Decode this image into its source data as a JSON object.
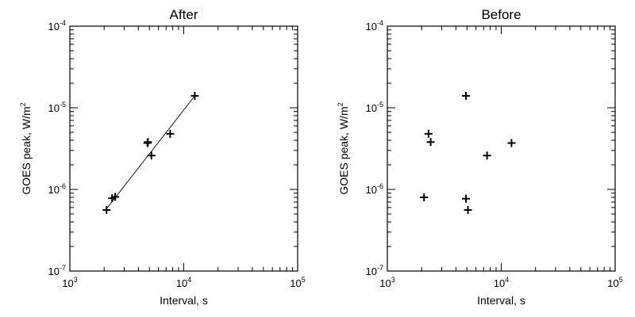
{
  "chart_data": [
    {
      "type": "scatter",
      "title": "After",
      "xlabel": "Interval, s",
      "ylabel": "GOES peak, W/m",
      "ylabel_sup": "2",
      "xscale": "log",
      "yscale": "log",
      "xlim": [
        1000,
        100000
      ],
      "ylim": [
        1e-07,
        0.0001
      ],
      "grid": false,
      "x_ticks": [
        {
          "base": "10",
          "exp": "3"
        },
        {
          "base": "10",
          "exp": "4"
        },
        {
          "base": "10",
          "exp": "5"
        }
      ],
      "y_ticks": [
        {
          "base": "10",
          "exp": "-7"
        },
        {
          "base": "10",
          "exp": "-6"
        },
        {
          "base": "10",
          "exp": "-5"
        },
        {
          "base": "10",
          "exp": "-4"
        }
      ],
      "series": [
        {
          "x": [
            2100,
            2350,
            2500,
            4800,
            4850,
            5200,
            7600,
            12500
          ],
          "y": [
            5.6e-07,
            7.8e-07,
            8.1e-07,
            3.7e-06,
            3.8e-06,
            2.6e-06,
            4.8e-06,
            1.4e-05
          ]
        }
      ],
      "fit_line": {
        "x": [
          2100,
          12500
        ],
        "y": [
          5.8e-07,
          1.4e-05
        ]
      }
    },
    {
      "type": "scatter",
      "title": "Before",
      "xlabel": "Interval, s",
      "ylabel": "GOES peak, W/m",
      "ylabel_sup": "2",
      "xscale": "log",
      "yscale": "log",
      "xlim": [
        1000,
        100000
      ],
      "ylim": [
        1e-07,
        0.0001
      ],
      "grid": false,
      "x_ticks": [
        {
          "base": "10",
          "exp": "3"
        },
        {
          "base": "10",
          "exp": "4"
        },
        {
          "base": "10",
          "exp": "5"
        }
      ],
      "y_ticks": [
        {
          "base": "10",
          "exp": "-7"
        },
        {
          "base": "10",
          "exp": "-6"
        },
        {
          "base": "10",
          "exp": "-5"
        },
        {
          "base": "10",
          "exp": "-4"
        }
      ],
      "series": [
        {
          "x": [
            2100,
            2300,
            2400,
            4900,
            4900,
            5100,
            7500,
            12300
          ],
          "y": [
            8e-07,
            4.8e-06,
            3.8e-06,
            1.4e-05,
            7.7e-07,
            5.6e-07,
            2.6e-06,
            3.7e-06
          ]
        }
      ]
    }
  ]
}
